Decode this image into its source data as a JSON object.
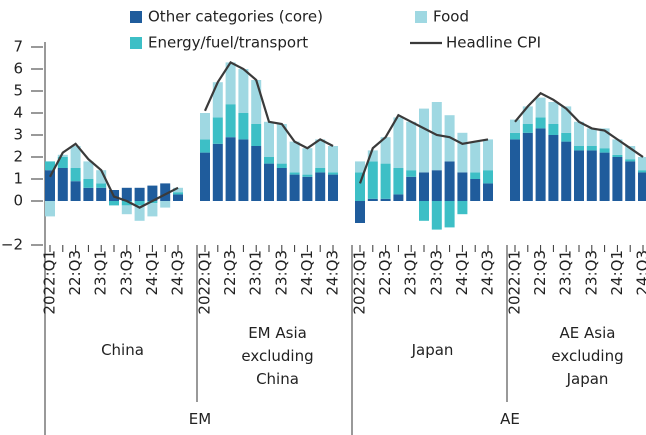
{
  "chart_data": {
    "type": "bar",
    "stacked": true,
    "ylim": [
      -2,
      7
    ],
    "yticks": [
      {
        "value": -2,
        "label": "−2"
      },
      0,
      1,
      2,
      3,
      4,
      5,
      6,
      7
    ],
    "categories": [
      "2022:Q1",
      null,
      "22:Q3",
      null,
      "23:Q1",
      null,
      "23:Q3",
      null,
      "24:Q1",
      null,
      "24:Q3",
      "2022:Q1",
      null,
      "22:Q3",
      null,
      "23:Q1",
      null,
      "23:Q3",
      null,
      "24:Q1",
      null,
      "24:Q3",
      "2022:Q1",
      null,
      "22:Q3",
      null,
      "23:Q1",
      null,
      "23:Q3",
      null,
      "24:Q1",
      null,
      "24:Q3",
      "2022:Q1",
      null,
      "22:Q3",
      null,
      "23:Q1",
      null,
      "23:Q3",
      null,
      "24:Q1",
      null,
      "24:Q3"
    ],
    "groups": [
      "China",
      "EM Asia excluding China",
      "Japan",
      "AE Asia excluding Japan"
    ],
    "regions": [
      "EM",
      "AE"
    ],
    "series": [
      {
        "name": "Other categories (core)",
        "color": "#1f5c9c",
        "type": "bar",
        "values": [
          1.4,
          1.5,
          0.9,
          0.6,
          0.6,
          0.5,
          0.6,
          0.6,
          0.7,
          0.8,
          0.3,
          2.2,
          2.6,
          2.9,
          2.8,
          2.5,
          1.7,
          1.5,
          1.2,
          1.1,
          1.3,
          1.2,
          -1.0,
          0.1,
          0.1,
          0.3,
          1.1,
          1.3,
          1.4,
          1.8,
          1.3,
          1.0,
          0.8,
          2.8,
          3.1,
          3.3,
          3.0,
          2.7,
          2.3,
          2.3,
          2.2,
          2.0,
          1.8,
          1.3
        ]
      },
      {
        "name": "Energy/fuel/transport",
        "color": "#3dbfc6",
        "type": "bar",
        "values": [
          0.4,
          0.5,
          0.6,
          0.4,
          0.2,
          -0.2,
          -0.2,
          -0.2,
          -0.1,
          0.0,
          0.1,
          0.6,
          1.2,
          1.5,
          1.2,
          1.0,
          0.3,
          0.2,
          0.1,
          0.1,
          0.2,
          0.1,
          1.3,
          1.7,
          1.6,
          1.2,
          0.3,
          -0.9,
          -1.3,
          -1.2,
          -0.6,
          0.3,
          0.6,
          0.3,
          0.4,
          0.5,
          0.5,
          0.4,
          0.2,
          0.2,
          0.2,
          0.1,
          0.1,
          0.1
        ]
      },
      {
        "name": "Food",
        "color": "#9fd8e2",
        "type": "bar",
        "values": [
          -0.7,
          0.1,
          1.0,
          0.8,
          0.6,
          0.0,
          -0.4,
          -0.7,
          -0.6,
          -0.3,
          0.2,
          1.2,
          1.6,
          1.9,
          2.0,
          2.0,
          1.6,
          1.8,
          1.4,
          1.2,
          1.3,
          1.2,
          0.5,
          0.5,
          1.2,
          2.3,
          2.2,
          2.9,
          3.1,
          2.1,
          1.8,
          1.4,
          1.4,
          0.6,
          0.8,
          0.9,
          1.0,
          1.2,
          1.1,
          0.8,
          0.9,
          0.7,
          0.6,
          0.6
        ]
      },
      {
        "name": "Headline CPI",
        "color": "#3a3a3a",
        "type": "line",
        "values": [
          1.1,
          2.2,
          2.6,
          1.9,
          1.4,
          0.2,
          0.0,
          -0.3,
          0.0,
          0.3,
          0.6,
          4.1,
          5.4,
          6.3,
          6.0,
          5.5,
          3.6,
          3.5,
          2.7,
          2.4,
          2.8,
          2.5,
          0.8,
          2.4,
          2.9,
          3.9,
          3.6,
          3.3,
          3.0,
          2.9,
          2.6,
          2.7,
          2.8,
          3.6,
          4.3,
          4.9,
          4.6,
          4.2,
          3.6,
          3.3,
          3.2,
          2.8,
          2.4,
          2.0
        ]
      }
    ]
  }
}
